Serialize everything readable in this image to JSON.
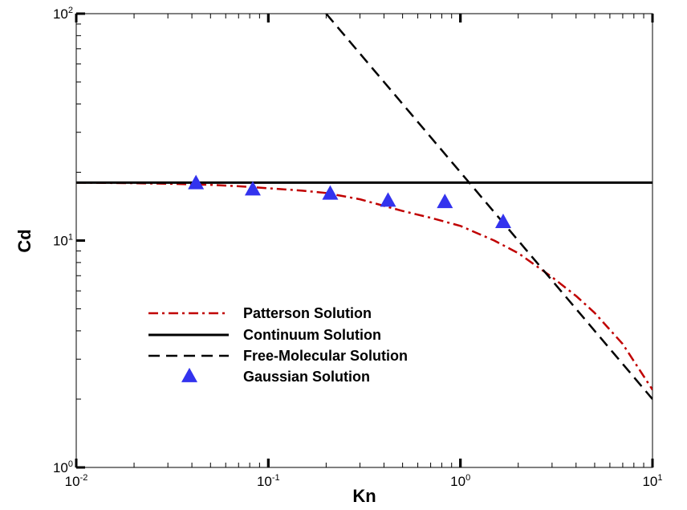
{
  "chart_data": {
    "type": "line",
    "xlabel": "Kn",
    "ylabel": "Cd",
    "xscale": "log",
    "yscale": "log",
    "xlim": [
      0.01,
      10
    ],
    "ylim": [
      1,
      100
    ],
    "x_tick_labels": [
      {
        "base": "10",
        "exp": "-2",
        "value": 0.01
      },
      {
        "base": "10",
        "exp": "-1",
        "value": 0.1
      },
      {
        "base": "10",
        "exp": "0",
        "value": 1
      },
      {
        "base": "10",
        "exp": "1",
        "value": 10
      }
    ],
    "y_tick_labels": [
      {
        "base": "10",
        "exp": "0",
        "value": 1
      },
      {
        "base": "10",
        "exp": "1",
        "value": 10
      },
      {
        "base": "10",
        "exp": "2",
        "value": 100
      }
    ],
    "grid": false,
    "legend_position": "lower-left",
    "series": [
      {
        "name": "Patterson Solution",
        "style": "dash-dot",
        "color": "#c00000",
        "x": [
          0.01,
          0.02,
          0.03,
          0.05,
          0.07,
          0.1,
          0.15,
          0.2,
          0.3,
          0.5,
          0.7,
          1.0,
          1.5,
          2.0,
          3.0,
          4.0,
          5.0,
          7.0,
          10.0
        ],
        "y": [
          18.0,
          17.9,
          17.8,
          17.6,
          17.35,
          17.0,
          16.6,
          16.2,
          15.2,
          13.5,
          12.6,
          11.6,
          10.0,
          8.8,
          6.9,
          5.7,
          4.8,
          3.5,
          2.2
        ]
      },
      {
        "name": "Continuum Solution",
        "style": "solid",
        "color": "#000000",
        "x": [
          0.01,
          10.0
        ],
        "y": [
          18.0,
          18.0
        ]
      },
      {
        "name": "Free-Molecular Solution",
        "style": "dashed",
        "color": "#000000",
        "x": [
          0.2,
          10.0
        ],
        "y": [
          100,
          2.0
        ]
      },
      {
        "name": "Gaussian Solution",
        "style": "markers",
        "marker": "triangle",
        "color": "#3333ee",
        "x": [
          0.042,
          0.083,
          0.21,
          0.42,
          0.83,
          1.67
        ],
        "y": [
          17.8,
          16.7,
          16.0,
          14.9,
          14.7,
          12.0
        ]
      }
    ]
  }
}
